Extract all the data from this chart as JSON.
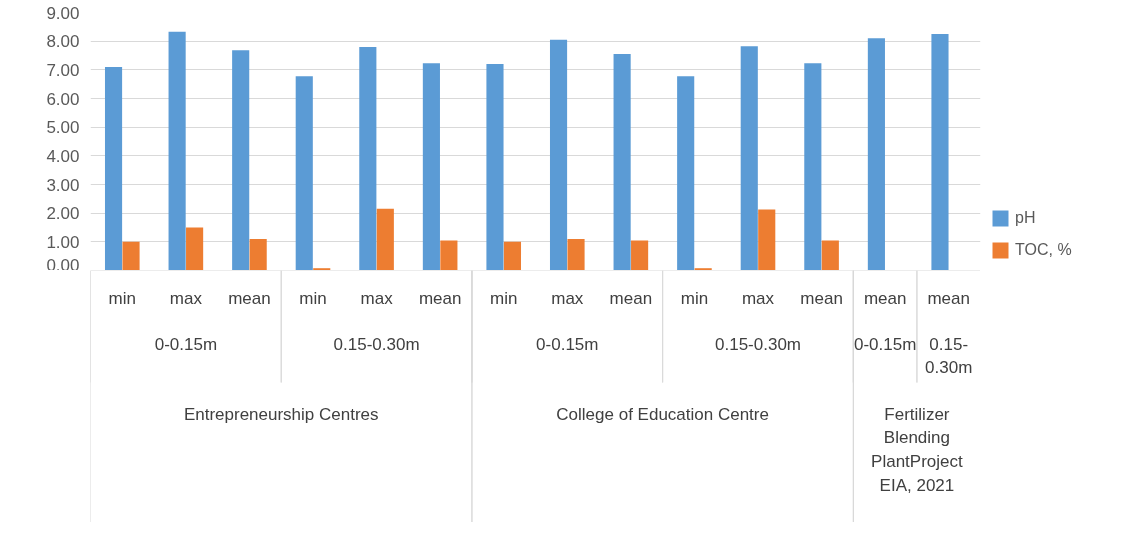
{
  "chart_data": {
    "type": "bar",
    "categories": [
      [
        "Entrepreneurship Centres",
        "0-0.15m",
        "min"
      ],
      [
        null,
        null,
        "max"
      ],
      [
        null,
        null,
        "mean"
      ],
      [
        null,
        "0.15-0.30m",
        "min"
      ],
      [
        null,
        null,
        "max"
      ],
      [
        null,
        null,
        "mean"
      ],
      [
        "College of Education Centre",
        "0-0.15m",
        "min"
      ],
      [
        null,
        null,
        "max"
      ],
      [
        null,
        null,
        "mean"
      ],
      [
        null,
        "0.15-0.30m",
        "min"
      ],
      [
        null,
        null,
        "max"
      ],
      [
        null,
        null,
        "mean"
      ],
      [
        "Fertilizer Blending PlantProject EIA, 2021",
        "0-0.15m",
        "mean"
      ],
      [
        null,
        "0.15-0.30m",
        "mean"
      ]
    ],
    "series": [
      {
        "name": "pH",
        "color": "#5b9bd5",
        "values": [
          7.1,
          8.33,
          7.68,
          6.78,
          7.8,
          7.23,
          7.2,
          8.05,
          7.55,
          6.78,
          7.82,
          7.23,
          8.1,
          8.25
        ]
      },
      {
        "name": "TOC, %",
        "color": "#ed7d31",
        "values": [
          1.0,
          1.5,
          1.1,
          0.08,
          2.15,
          1.05,
          1.0,
          1.1,
          1.05,
          0.08,
          2.13,
          1.05,
          null,
          null
        ]
      }
    ],
    "ylim": [
      0,
      9
    ],
    "yticks": [
      {
        "value": 0,
        "label": "0.00"
      },
      {
        "value": 1,
        "label": "1.00"
      },
      {
        "value": 2,
        "label": "2.00"
      },
      {
        "value": 3,
        "label": "3.00"
      },
      {
        "value": 4,
        "label": "4.00"
      },
      {
        "value": 5,
        "label": "5.00"
      },
      {
        "value": 6,
        "label": "6.00"
      },
      {
        "value": 7,
        "label": "7.00"
      },
      {
        "value": 8,
        "label": "8.00"
      },
      {
        "value": 9,
        "label": "9.00"
      }
    ],
    "grid": "y",
    "legend": "right"
  }
}
